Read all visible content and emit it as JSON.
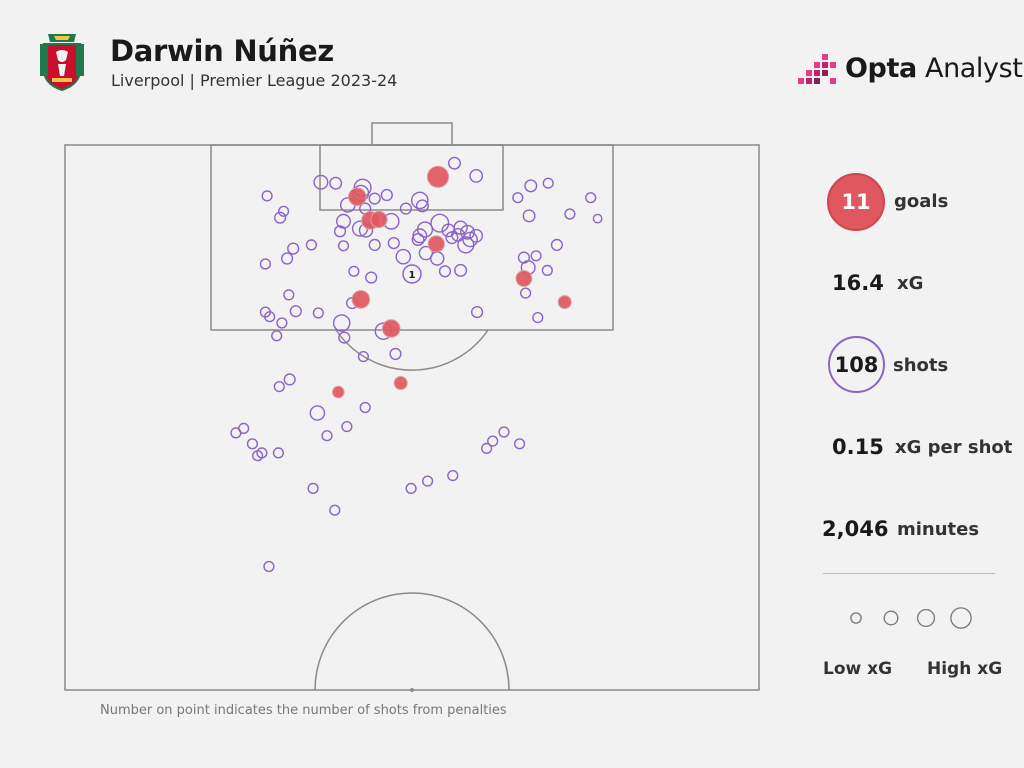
{
  "header": {
    "player_name": "Darwin Núñez",
    "subtitle": "Liverpool | Premier League 2023-24",
    "brand_bold": "Opta",
    "brand_light": " Analyst"
  },
  "colors": {
    "goal": "#e1575f",
    "shot": "#8c63c6",
    "pitch_line": "#8a8a8a",
    "background": "#f2f2f2"
  },
  "stats": {
    "goals": {
      "value": "11",
      "label": "goals"
    },
    "xg": {
      "value": "16.4",
      "label": "xG"
    },
    "shots": {
      "value": "108",
      "label": "shots"
    },
    "xg_per_shot": {
      "value": "0.15",
      "label": "xG per shot"
    },
    "minutes": {
      "value": "2,046",
      "label": "minutes"
    }
  },
  "legend": {
    "low_label": "Low xG",
    "high_label": "High xG",
    "xg_levels": [
      0.03,
      0.1,
      0.2,
      0.35
    ]
  },
  "footnote": "Number on point indicates the number of shots from penalties",
  "chart_data": {
    "type": "scatter",
    "pitch": {
      "units": "yards",
      "x_range": [
        0,
        80
      ],
      "y_range": [
        0,
        60
      ]
    },
    "penalty_marker": {
      "x": 40.0,
      "y": 14.2,
      "count": "1"
    },
    "shots": [
      {
        "x": 43.0,
        "y": 3.5,
        "xg": 0.25,
        "goal": true
      },
      {
        "x": 40.9,
        "y": 6.1,
        "xg": 0.12,
        "goal": false
      },
      {
        "x": 44.9,
        "y": 2.0,
        "xg": 0.04,
        "goal": false
      },
      {
        "x": 47.4,
        "y": 3.4,
        "xg": 0.05,
        "goal": false
      },
      {
        "x": 29.5,
        "y": 4.1,
        "xg": 0.07,
        "goal": false
      },
      {
        "x": 31.2,
        "y": 4.2,
        "xg": 0.04,
        "goal": false
      },
      {
        "x": 34.3,
        "y": 4.7,
        "xg": 0.13,
        "goal": false
      },
      {
        "x": 34.1,
        "y": 5.3,
        "xg": 0.1,
        "goal": false
      },
      {
        "x": 33.7,
        "y": 5.7,
        "xg": 0.15,
        "goal": true
      },
      {
        "x": 32.6,
        "y": 6.6,
        "xg": 0.08,
        "goal": false
      },
      {
        "x": 34.6,
        "y": 7.0,
        "xg": 0.03,
        "goal": false
      },
      {
        "x": 39.3,
        "y": 7.0,
        "xg": 0.03,
        "goal": false
      },
      {
        "x": 41.2,
        "y": 6.7,
        "xg": 0.04,
        "goal": false
      },
      {
        "x": 53.7,
        "y": 4.5,
        "xg": 0.04,
        "goal": false
      },
      {
        "x": 55.7,
        "y": 4.2,
        "xg": 0.02,
        "goal": false
      },
      {
        "x": 52.2,
        "y": 5.8,
        "xg": 0.02,
        "goal": false
      },
      {
        "x": 60.6,
        "y": 5.8,
        "xg": 0.02,
        "goal": false
      },
      {
        "x": 61.4,
        "y": 8.1,
        "xg": 0.01,
        "goal": false
      },
      {
        "x": 58.2,
        "y": 7.6,
        "xg": 0.02,
        "goal": false
      },
      {
        "x": 53.5,
        "y": 7.8,
        "xg": 0.04,
        "goal": false
      },
      {
        "x": 23.3,
        "y": 5.6,
        "xg": 0.02,
        "goal": false
      },
      {
        "x": 25.2,
        "y": 7.3,
        "xg": 0.02,
        "goal": false
      },
      {
        "x": 24.8,
        "y": 8.0,
        "xg": 0.03,
        "goal": false
      },
      {
        "x": 32.1,
        "y": 8.4,
        "xg": 0.07,
        "goal": false
      },
      {
        "x": 35.2,
        "y": 8.3,
        "xg": 0.15,
        "goal": true
      },
      {
        "x": 36.2,
        "y": 8.2,
        "xg": 0.12,
        "goal": true
      },
      {
        "x": 37.6,
        "y": 8.4,
        "xg": 0.1,
        "goal": false
      },
      {
        "x": 34.0,
        "y": 9.2,
        "xg": 0.09,
        "goal": false
      },
      {
        "x": 34.7,
        "y": 9.4,
        "xg": 0.06,
        "goal": false
      },
      {
        "x": 31.7,
        "y": 9.5,
        "xg": 0.03,
        "goal": false
      },
      {
        "x": 43.2,
        "y": 8.6,
        "xg": 0.15,
        "goal": false
      },
      {
        "x": 41.5,
        "y": 9.3,
        "xg": 0.09,
        "goal": false
      },
      {
        "x": 40.9,
        "y": 10.0,
        "xg": 0.07,
        "goal": false
      },
      {
        "x": 40.7,
        "y": 10.4,
        "xg": 0.04,
        "goal": false
      },
      {
        "x": 44.2,
        "y": 9.4,
        "xg": 0.05,
        "goal": false
      },
      {
        "x": 44.6,
        "y": 10.2,
        "xg": 0.04,
        "goal": false
      },
      {
        "x": 45.6,
        "y": 9.1,
        "xg": 0.06,
        "goal": false
      },
      {
        "x": 46.4,
        "y": 9.6,
        "xg": 0.07,
        "goal": false
      },
      {
        "x": 46.7,
        "y": 10.4,
        "xg": 0.08,
        "goal": false
      },
      {
        "x": 47.4,
        "y": 10.0,
        "xg": 0.05,
        "goal": false
      },
      {
        "x": 46.2,
        "y": 11.0,
        "xg": 0.11,
        "goal": false
      },
      {
        "x": 42.8,
        "y": 10.9,
        "xg": 0.12,
        "goal": true
      },
      {
        "x": 41.6,
        "y": 11.9,
        "xg": 0.06,
        "goal": false
      },
      {
        "x": 42.9,
        "y": 12.5,
        "xg": 0.06,
        "goal": false
      },
      {
        "x": 39.0,
        "y": 12.3,
        "xg": 0.08,
        "goal": false
      },
      {
        "x": 37.9,
        "y": 10.8,
        "xg": 0.03,
        "goal": false
      },
      {
        "x": 35.7,
        "y": 11.0,
        "xg": 0.03,
        "goal": false
      },
      {
        "x": 32.1,
        "y": 11.1,
        "xg": 0.02,
        "goal": false
      },
      {
        "x": 28.4,
        "y": 11.0,
        "xg": 0.02,
        "goal": false
      },
      {
        "x": 26.3,
        "y": 11.4,
        "xg": 0.03,
        "goal": false
      },
      {
        "x": 25.6,
        "y": 12.5,
        "xg": 0.03,
        "goal": false
      },
      {
        "x": 23.1,
        "y": 13.1,
        "xg": 0.02,
        "goal": false
      },
      {
        "x": 33.3,
        "y": 13.9,
        "xg": 0.02,
        "goal": false
      },
      {
        "x": 35.3,
        "y": 14.6,
        "xg": 0.03,
        "goal": false
      },
      {
        "x": 43.8,
        "y": 13.9,
        "xg": 0.03,
        "goal": false
      },
      {
        "x": 45.6,
        "y": 13.8,
        "xg": 0.04,
        "goal": false
      },
      {
        "x": 52.9,
        "y": 12.4,
        "xg": 0.03,
        "goal": false
      },
      {
        "x": 54.3,
        "y": 12.2,
        "xg": 0.02,
        "goal": false
      },
      {
        "x": 56.7,
        "y": 11.0,
        "xg": 0.03,
        "goal": false
      },
      {
        "x": 53.4,
        "y": 13.5,
        "xg": 0.07,
        "goal": false
      },
      {
        "x": 52.9,
        "y": 14.7,
        "xg": 0.11,
        "goal": true
      },
      {
        "x": 55.6,
        "y": 13.8,
        "xg": 0.02,
        "goal": false
      },
      {
        "x": 53.1,
        "y": 16.3,
        "xg": 0.02,
        "goal": false
      },
      {
        "x": 57.6,
        "y": 17.3,
        "xg": 0.06,
        "goal": true
      },
      {
        "x": 54.5,
        "y": 19.0,
        "xg": 0.02,
        "goal": false
      },
      {
        "x": 47.5,
        "y": 18.4,
        "xg": 0.03,
        "goal": false
      },
      {
        "x": 34.1,
        "y": 17.0,
        "xg": 0.15,
        "goal": true
      },
      {
        "x": 33.1,
        "y": 17.4,
        "xg": 0.03,
        "goal": false
      },
      {
        "x": 29.2,
        "y": 18.5,
        "xg": 0.02,
        "goal": false
      },
      {
        "x": 25.8,
        "y": 16.5,
        "xg": 0.02,
        "goal": false
      },
      {
        "x": 26.6,
        "y": 18.3,
        "xg": 0.03,
        "goal": false
      },
      {
        "x": 23.6,
        "y": 18.9,
        "xg": 0.02,
        "goal": false
      },
      {
        "x": 23.1,
        "y": 18.4,
        "xg": 0.02,
        "goal": false
      },
      {
        "x": 25.0,
        "y": 19.6,
        "xg": 0.02,
        "goal": false
      },
      {
        "x": 24.4,
        "y": 21.0,
        "xg": 0.02,
        "goal": false
      },
      {
        "x": 31.9,
        "y": 19.6,
        "xg": 0.12,
        "goal": false
      },
      {
        "x": 36.7,
        "y": 20.5,
        "xg": 0.12,
        "goal": false
      },
      {
        "x": 37.6,
        "y": 20.2,
        "xg": 0.15,
        "goal": true
      },
      {
        "x": 32.2,
        "y": 21.2,
        "xg": 0.03,
        "goal": false
      },
      {
        "x": 34.4,
        "y": 23.3,
        "xg": 0.02,
        "goal": false
      },
      {
        "x": 38.1,
        "y": 23.0,
        "xg": 0.03,
        "goal": false
      },
      {
        "x": 38.7,
        "y": 26.2,
        "xg": 0.06,
        "goal": true
      },
      {
        "x": 31.5,
        "y": 27.2,
        "xg": 0.04,
        "goal": true
      },
      {
        "x": 25.9,
        "y": 25.8,
        "xg": 0.03,
        "goal": false
      },
      {
        "x": 24.7,
        "y": 26.6,
        "xg": 0.02,
        "goal": false
      },
      {
        "x": 29.1,
        "y": 29.5,
        "xg": 0.08,
        "goal": false
      },
      {
        "x": 34.6,
        "y": 28.9,
        "xg": 0.02,
        "goal": false
      },
      {
        "x": 32.5,
        "y": 31.0,
        "xg": 0.02,
        "goal": false
      },
      {
        "x": 30.2,
        "y": 32.0,
        "xg": 0.02,
        "goal": false
      },
      {
        "x": 20.6,
        "y": 31.2,
        "xg": 0.02,
        "goal": false
      },
      {
        "x": 19.7,
        "y": 31.7,
        "xg": 0.02,
        "goal": false
      },
      {
        "x": 21.6,
        "y": 32.9,
        "xg": 0.02,
        "goal": false
      },
      {
        "x": 22.2,
        "y": 34.2,
        "xg": 0.02,
        "goal": false
      },
      {
        "x": 22.7,
        "y": 33.9,
        "xg": 0.02,
        "goal": false
      },
      {
        "x": 24.6,
        "y": 33.9,
        "xg": 0.02,
        "goal": false
      },
      {
        "x": 48.6,
        "y": 33.4,
        "xg": 0.02,
        "goal": false
      },
      {
        "x": 49.3,
        "y": 32.6,
        "xg": 0.02,
        "goal": false
      },
      {
        "x": 50.6,
        "y": 31.6,
        "xg": 0.02,
        "goal": false
      },
      {
        "x": 52.4,
        "y": 32.9,
        "xg": 0.02,
        "goal": false
      },
      {
        "x": 44.7,
        "y": 36.4,
        "xg": 0.02,
        "goal": false
      },
      {
        "x": 41.8,
        "y": 37.0,
        "xg": 0.02,
        "goal": false
      },
      {
        "x": 39.9,
        "y": 37.8,
        "xg": 0.02,
        "goal": false
      },
      {
        "x": 28.6,
        "y": 37.8,
        "xg": 0.02,
        "goal": false
      },
      {
        "x": 31.1,
        "y": 40.2,
        "xg": 0.02,
        "goal": false
      },
      {
        "x": 23.5,
        "y": 46.4,
        "xg": 0.02,
        "goal": false
      },
      {
        "x": 35.7,
        "y": 5.9,
        "xg": 0.03,
        "goal": false
      },
      {
        "x": 37.1,
        "y": 5.5,
        "xg": 0.03,
        "goal": false
      },
      {
        "x": 45.3,
        "y": 9.9,
        "xg": 0.05,
        "goal": false
      }
    ]
  }
}
